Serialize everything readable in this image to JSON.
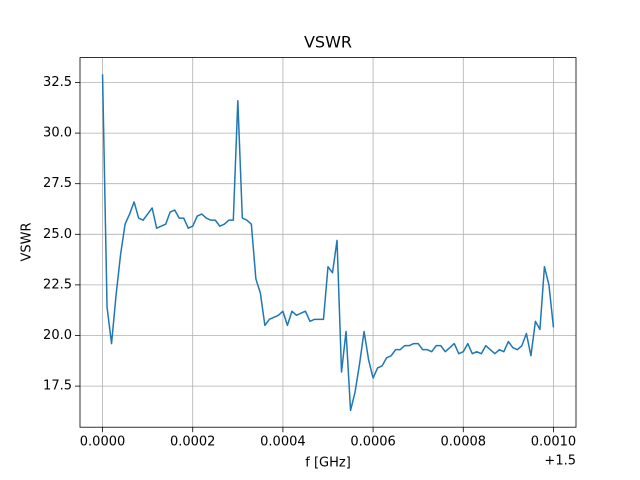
{
  "chart_data": {
    "type": "line",
    "title": "VSWR",
    "x_label": "f [GHz]",
    "y_label": "VSWR",
    "x_offset_label": "+1.5",
    "x": [
      1.5,
      1.50001,
      1.50002,
      1.50003,
      1.50004,
      1.50005,
      1.50006,
      1.50007,
      1.50008,
      1.50009,
      1.5001,
      1.50011,
      1.50012,
      1.50013,
      1.50014,
      1.50015,
      1.50016,
      1.50017,
      1.50018,
      1.50019,
      1.5002,
      1.50021,
      1.50022,
      1.50023,
      1.50024,
      1.50025,
      1.50026,
      1.50027,
      1.50028,
      1.50029,
      1.5003,
      1.50031,
      1.50032,
      1.50033,
      1.50034,
      1.50035,
      1.50036,
      1.50037,
      1.50038,
      1.50039,
      1.5004,
      1.50041,
      1.50042,
      1.50043,
      1.50044,
      1.50045,
      1.50046,
      1.50047,
      1.50048,
      1.50049,
      1.5005,
      1.50051,
      1.50052,
      1.50053,
      1.50054,
      1.50055,
      1.50056,
      1.50057,
      1.50058,
      1.50059,
      1.5006,
      1.50061,
      1.50062,
      1.50063,
      1.50064,
      1.50065,
      1.50066,
      1.50067,
      1.50068,
      1.50069,
      1.5007,
      1.50071,
      1.50072,
      1.50073,
      1.50074,
      1.50075,
      1.50076,
      1.50077,
      1.50078,
      1.50079,
      1.5008,
      1.50081,
      1.50082,
      1.50083,
      1.50084,
      1.50085,
      1.50086,
      1.50087,
      1.50088,
      1.50089,
      1.5009,
      1.50091,
      1.50092,
      1.50093,
      1.50094,
      1.50095,
      1.50096,
      1.50097,
      1.50098,
      1.50099,
      1.501
    ],
    "series": [
      {
        "color": "#1f77b4",
        "values": [
          32.9,
          21.4,
          19.6,
          22.0,
          24.0,
          25.5,
          26.0,
          26.6,
          25.8,
          25.7,
          26.0,
          26.3,
          25.3,
          25.4,
          25.5,
          26.1,
          26.2,
          25.8,
          25.8,
          25.3,
          25.4,
          25.9,
          26.0,
          25.8,
          25.7,
          25.7,
          25.4,
          25.5,
          25.7,
          25.7,
          31.6,
          25.8,
          25.7,
          25.5,
          22.8,
          22.1,
          20.5,
          20.8,
          20.9,
          21.0,
          21.2,
          20.5,
          21.2,
          21.0,
          21.1,
          21.2,
          20.7,
          20.8,
          20.8,
          20.8,
          23.4,
          23.1,
          24.7,
          18.2,
          20.2,
          16.3,
          17.2,
          18.6,
          20.2,
          18.8,
          17.9,
          18.4,
          18.5,
          18.9,
          19.0,
          19.3,
          19.3,
          19.5,
          19.5,
          19.6,
          19.6,
          19.3,
          19.3,
          19.2,
          19.5,
          19.5,
          19.2,
          19.4,
          19.6,
          19.1,
          19.2,
          19.6,
          19.1,
          19.2,
          19.1,
          19.5,
          19.3,
          19.1,
          19.3,
          19.2,
          19.7,
          19.4,
          19.3,
          19.5,
          20.1,
          19.0,
          20.7,
          20.3,
          23.4,
          22.5,
          20.4
        ]
      }
    ],
    "xlim": [
      1.49995,
      1.50105
    ],
    "xticks": [
      {
        "value": 1.5,
        "label": "0.0000"
      },
      {
        "value": 1.5002,
        "label": "0.0002"
      },
      {
        "value": 1.5004,
        "label": "0.0004"
      },
      {
        "value": 1.5006,
        "label": "0.0006"
      },
      {
        "value": 1.5008,
        "label": "0.0008"
      },
      {
        "value": 1.501,
        "label": "0.0010"
      }
    ],
    "ylim": [
      15.47,
      33.73
    ],
    "yticks": [
      17.5,
      {
        "value": 20,
        "label": "20.0"
      },
      22.5,
      {
        "value": 25,
        "label": "25.0"
      },
      27.5,
      {
        "value": 30,
        "label": "30.0"
      },
      32.5
    ],
    "grid": true
  }
}
